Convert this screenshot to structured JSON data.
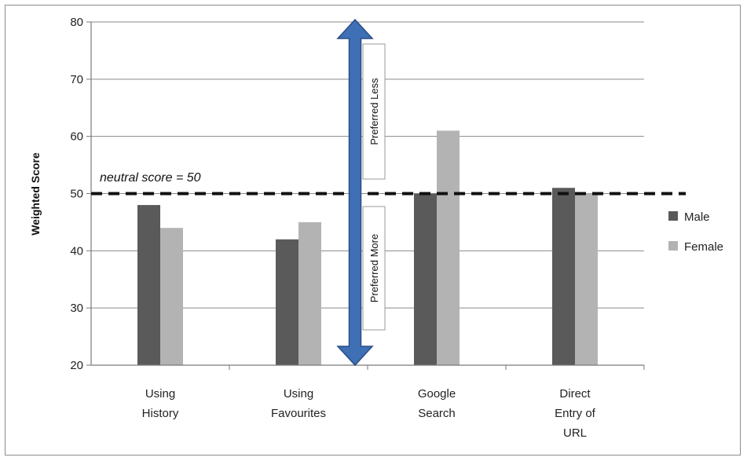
{
  "chart_data": {
    "type": "bar",
    "ylabel": "Weighted Score",
    "ylim": [
      20,
      80
    ],
    "yticks": [
      "20",
      "30",
      "40",
      "50",
      "60",
      "70",
      "80"
    ],
    "grid": true,
    "categories": [
      [
        "Using",
        "History"
      ],
      [
        "Using",
        "Favourites"
      ],
      [
        "Google",
        "Search"
      ],
      [
        "Direct",
        "Entry of",
        "URL"
      ]
    ],
    "series": [
      {
        "name": "Male",
        "color": "#5a5a5a",
        "values": [
          48,
          42,
          50,
          51
        ]
      },
      {
        "name": "Female",
        "color": "#b3b3b3",
        "values": [
          44,
          45,
          61,
          50
        ]
      }
    ],
    "legend_position": "right",
    "reference_line": {
      "value": 50,
      "label": "neutral score = 50"
    },
    "arrow": {
      "color": "#3f6fb5",
      "top_label": "Preferred Less",
      "bottom_label": "Preferred More"
    }
  }
}
